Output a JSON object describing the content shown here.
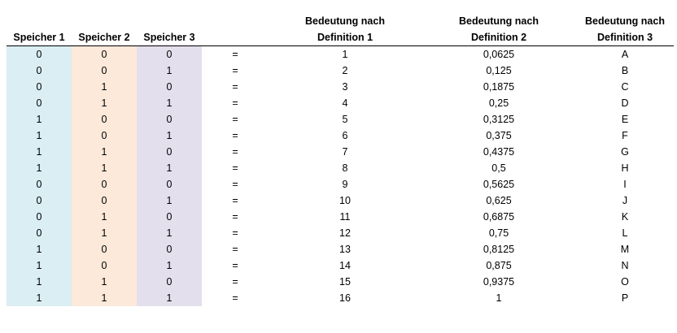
{
  "headers": {
    "s1": "Speicher 1",
    "s2": "Speicher 2",
    "s3": "Speicher 3",
    "eq": "",
    "d1_line1": "Bedeutung nach",
    "d1_line2": "Definition 1",
    "d2_line1": "Bedeutung nach",
    "d2_line2": "Definition 2",
    "d3_line1": "Bedeutung nach",
    "d3_line2": "Definition 3"
  },
  "colors": {
    "speicher1_fill": "#daeef3",
    "speicher2_fill": "#fde9d9",
    "speicher3_fill": "#e4dfec"
  },
  "rows": [
    {
      "s1": "0",
      "s2": "0",
      "s3": "0",
      "eq": "=",
      "d1": "1",
      "d2": "0,0625",
      "d3": "A"
    },
    {
      "s1": "0",
      "s2": "0",
      "s3": "1",
      "eq": "=",
      "d1": "2",
      "d2": "0,125",
      "d3": "B"
    },
    {
      "s1": "0",
      "s2": "1",
      "s3": "0",
      "eq": "=",
      "d1": "3",
      "d2": "0,1875",
      "d3": "C"
    },
    {
      "s1": "0",
      "s2": "1",
      "s3": "1",
      "eq": "=",
      "d1": "4",
      "d2": "0,25",
      "d3": "D"
    },
    {
      "s1": "1",
      "s2": "0",
      "s3": "0",
      "eq": "=",
      "d1": "5",
      "d2": "0,3125",
      "d3": "E"
    },
    {
      "s1": "1",
      "s2": "0",
      "s3": "1",
      "eq": "=",
      "d1": "6",
      "d2": "0,375",
      "d3": "F"
    },
    {
      "s1": "1",
      "s2": "1",
      "s3": "0",
      "eq": "=",
      "d1": "7",
      "d2": "0,4375",
      "d3": "G"
    },
    {
      "s1": "1",
      "s2": "1",
      "s3": "1",
      "eq": "=",
      "d1": "8",
      "d2": "0,5",
      "d3": "H"
    },
    {
      "s1": "0",
      "s2": "0",
      "s3": "0",
      "eq": "=",
      "d1": "9",
      "d2": "0,5625",
      "d3": "I"
    },
    {
      "s1": "0",
      "s2": "0",
      "s3": "1",
      "eq": "=",
      "d1": "10",
      "d2": "0,625",
      "d3": "J"
    },
    {
      "s1": "0",
      "s2": "1",
      "s3": "0",
      "eq": "=",
      "d1": "11",
      "d2": "0,6875",
      "d3": "K"
    },
    {
      "s1": "0",
      "s2": "1",
      "s3": "1",
      "eq": "=",
      "d1": "12",
      "d2": "0,75",
      "d3": "L"
    },
    {
      "s1": "1",
      "s2": "0",
      "s3": "0",
      "eq": "=",
      "d1": "13",
      "d2": "0,8125",
      "d3": "M"
    },
    {
      "s1": "1",
      "s2": "0",
      "s3": "1",
      "eq": "=",
      "d1": "14",
      "d2": "0,875",
      "d3": "N"
    },
    {
      "s1": "1",
      "s2": "1",
      "s3": "0",
      "eq": "=",
      "d1": "15",
      "d2": "0,9375",
      "d3": "O"
    },
    {
      "s1": "1",
      "s2": "1",
      "s3": "1",
      "eq": "=",
      "d1": "16",
      "d2": "1",
      "d3": "P"
    }
  ]
}
